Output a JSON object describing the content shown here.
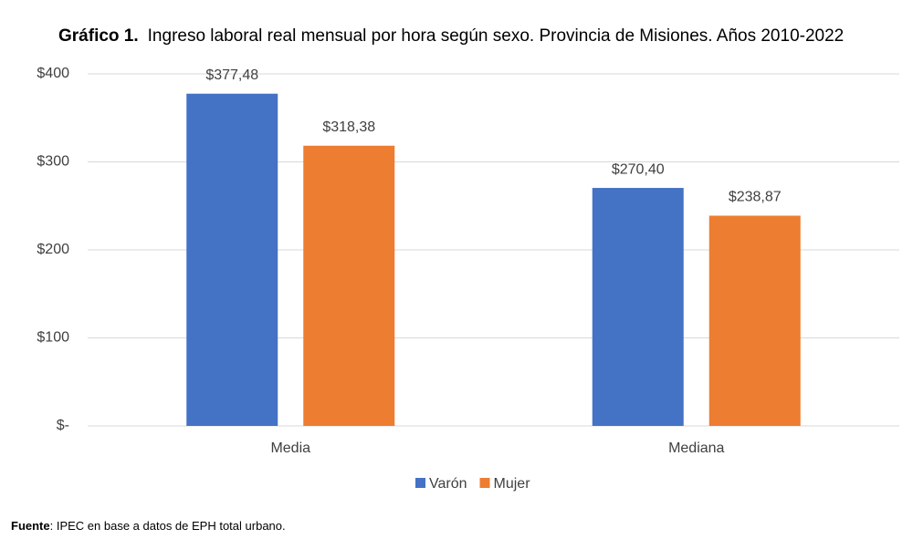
{
  "chart_data": {
    "type": "bar",
    "title_prefix": "Gráfico 1.",
    "title": "Ingreso laboral real mensual por hora según sexo. Provincia de Misiones. Años 2010-2022",
    "categories": [
      "Media",
      "Mediana"
    ],
    "series": [
      {
        "name": "Varón",
        "color": "#4472c4",
        "values": [
          377.48,
          270.4
        ],
        "value_labels": [
          "$377,48",
          "$270,40"
        ]
      },
      {
        "name": "Mujer",
        "color": "#ed7d31",
        "values": [
          318.38,
          238.87
        ],
        "value_labels": [
          "$318,38",
          "$238,87"
        ]
      }
    ],
    "ylim": [
      0,
      400
    ],
    "yticks": [
      {
        "value": 0,
        "label": "$-"
      },
      {
        "value": 100,
        "label": "$100"
      },
      {
        "value": 200,
        "label": "$200"
      },
      {
        "value": 300,
        "label": "$300"
      },
      {
        "value": 400,
        "label": "$400"
      }
    ],
    "grid": true,
    "legend": "bottom",
    "source_label": "Fuente",
    "source": ": IPEC en base a datos de EPH total urbano."
  }
}
